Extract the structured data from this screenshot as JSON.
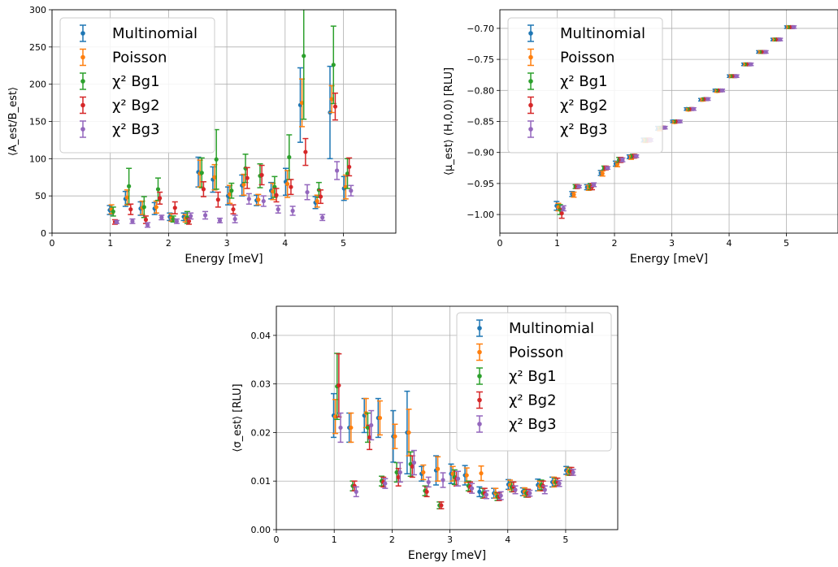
{
  "colors": {
    "Multinomial": "#1f77b4",
    "Poisson": "#ff7f0e",
    "Bg1": "#2ca02c",
    "Bg2": "#d62728",
    "Bg3": "#9467bd"
  },
  "chart_data": [
    {
      "type": "scatter",
      "subtype": "errorbar",
      "xlabel": "Energy [meV]",
      "ylabel": "⟨A_est/B_est⟩",
      "xlim": [
        0,
        5.9
      ],
      "ylim": [
        0,
        300
      ],
      "xticks": [
        0,
        1,
        2,
        3,
        4,
        5
      ],
      "yticks": [
        0,
        50,
        100,
        150,
        200,
        250,
        300
      ],
      "grid": true,
      "legend_position": "top-left",
      "x": [
        1.05,
        1.32,
        1.58,
        1.82,
        2.08,
        2.32,
        2.57,
        2.82,
        3.08,
        3.32,
        3.57,
        3.82,
        4.07,
        4.32,
        4.58,
        4.83,
        5.07
      ],
      "series": [
        {
          "name": "Multinomial",
          "values": [
            31,
            46,
            33,
            33,
            22,
            22,
            82,
            72,
            50,
            64,
            44,
            57,
            69,
            172,
            41,
            162,
            60
          ],
          "err": [
            6,
            10,
            9,
            8,
            5,
            5,
            20,
            17,
            12,
            14,
            7,
            11,
            18,
            50,
            8,
            62,
            16
          ]
        },
        {
          "name": "Poisson",
          "values": [
            32,
            48,
            34,
            35,
            21,
            20,
            80,
            75,
            52,
            65,
            45,
            56,
            66,
            175,
            43,
            180,
            62
          ],
          "err": [
            6,
            10,
            9,
            8,
            5,
            5,
            18,
            17,
            12,
            14,
            7,
            11,
            18,
            32,
            8,
            18,
            16
          ]
        },
        {
          "name": "χ² Bg1",
          "values": [
            29,
            63,
            35,
            59,
            19,
            21,
            81,
            99,
            57,
            87,
            77,
            62,
            102,
            238,
            58,
            226,
            80
          ],
          "err": [
            6,
            24,
            14,
            15,
            4,
            8,
            20,
            40,
            10,
            19,
            16,
            14,
            30,
            85,
            10,
            52,
            20
          ]
        },
        {
          "name": "χ² Bg2",
          "values": [
            15,
            32,
            18,
            47,
            34,
            16,
            59,
            45,
            32,
            74,
            78,
            51,
            62,
            109,
            49,
            170,
            89
          ],
          "err": [
            3,
            7,
            5,
            8,
            8,
            4,
            10,
            10,
            6,
            14,
            13,
            9,
            10,
            18,
            9,
            18,
            12
          ]
        },
        {
          "name": "χ² Bg3",
          "values": [
            15,
            16,
            11,
            21,
            16,
            23,
            24,
            17,
            19,
            46,
            43,
            32,
            30,
            55,
            21,
            84,
            57
          ],
          "err": [
            2,
            3,
            3,
            3,
            3,
            4,
            5,
            3,
            5,
            7,
            7,
            5,
            6,
            10,
            4,
            12,
            7
          ]
        }
      ]
    },
    {
      "type": "scatter",
      "subtype": "errorbar",
      "xlabel": "Energy [meV]",
      "ylabel": "⟨μ_est⟩ (H,0,0) [RLU]",
      "xlim": [
        0,
        5.9
      ],
      "ylim": [
        -1.03,
        -0.67
      ],
      "xticks": [
        0,
        1,
        2,
        3,
        4,
        5
      ],
      "yticks": [
        -1.0,
        -0.95,
        -0.9,
        -0.85,
        -0.8,
        -0.75,
        -0.7
      ],
      "grid": true,
      "legend_position": "top-left",
      "x": [
        1.05,
        1.32,
        1.58,
        1.82,
        2.08,
        2.32,
        2.57,
        2.82,
        3.08,
        3.32,
        3.57,
        3.82,
        4.07,
        4.32,
        4.58,
        4.83,
        5.07
      ],
      "series": [
        {
          "name": "Multinomial",
          "values": [
            -0.986,
            -0.967,
            -0.956,
            -0.933,
            -0.918,
            -0.907,
            -0.88,
            -0.861,
            -0.85,
            -0.83,
            -0.815,
            -0.8,
            -0.777,
            -0.758,
            -0.738,
            -0.718,
            -0.698
          ],
          "err": [
            0.007,
            0.004,
            0.004,
            0.004,
            0.004,
            0.003,
            0.003,
            0.003,
            0.002,
            0.002,
            0.002,
            0.002,
            0.002,
            0.002,
            0.002,
            0.002,
            0.002
          ]
        },
        {
          "name": "Poisson",
          "values": [
            -0.988,
            -0.968,
            -0.957,
            -0.934,
            -0.919,
            -0.908,
            -0.881,
            -0.862,
            -0.851,
            -0.831,
            -0.815,
            -0.801,
            -0.777,
            -0.758,
            -0.738,
            -0.718,
            -0.698
          ],
          "err": [
            0.006,
            0.004,
            0.004,
            0.004,
            0.004,
            0.003,
            0.003,
            0.003,
            0.002,
            0.002,
            0.002,
            0.002,
            0.002,
            0.002,
            0.002,
            0.002,
            0.002
          ]
        },
        {
          "name": "χ² Bg1",
          "values": [
            -0.992,
            -0.955,
            -0.955,
            -0.925,
            -0.912,
            -0.906,
            -0.88,
            -0.86,
            -0.85,
            -0.83,
            -0.814,
            -0.8,
            -0.777,
            -0.758,
            -0.738,
            -0.718,
            -0.698
          ],
          "err": [
            0.008,
            0.003,
            0.005,
            0.003,
            0.004,
            0.003,
            0.003,
            0.002,
            0.002,
            0.002,
            0.002,
            0.002,
            0.002,
            0.002,
            0.002,
            0.002,
            0.002
          ]
        },
        {
          "name": "χ² Bg2",
          "values": [
            -0.998,
            -0.955,
            -0.955,
            -0.925,
            -0.912,
            -0.906,
            -0.88,
            -0.86,
            -0.85,
            -0.83,
            -0.814,
            -0.8,
            -0.777,
            -0.758,
            -0.738,
            -0.718,
            -0.698
          ],
          "err": [
            0.008,
            0.003,
            0.005,
            0.003,
            0.004,
            0.003,
            0.003,
            0.002,
            0.002,
            0.002,
            0.002,
            0.002,
            0.002,
            0.002,
            0.002,
            0.002,
            0.002
          ]
        },
        {
          "name": "χ² Bg3",
          "values": [
            -0.99,
            -0.955,
            -0.952,
            -0.925,
            -0.912,
            -0.906,
            -0.88,
            -0.86,
            -0.85,
            -0.83,
            -0.814,
            -0.8,
            -0.777,
            -0.758,
            -0.738,
            -0.718,
            -0.698
          ],
          "err": [
            0.004,
            0.002,
            0.003,
            0.002,
            0.003,
            0.002,
            0.002,
            0.002,
            0.002,
            0.002,
            0.002,
            0.002,
            0.002,
            0.002,
            0.002,
            0.002,
            0.002
          ]
        }
      ]
    },
    {
      "type": "scatter",
      "subtype": "errorbar",
      "xlabel": "Energy [meV]",
      "ylabel": "⟨σ_est⟩ [RLU]",
      "xlim": [
        0,
        5.9
      ],
      "ylim": [
        0,
        0.046
      ],
      "xticks": [
        0,
        1,
        2,
        3,
        4,
        5
      ],
      "yticks": [
        0.0,
        0.01,
        0.02,
        0.03,
        0.04
      ],
      "grid": true,
      "legend_position": "top-right",
      "x": [
        1.05,
        1.32,
        1.58,
        1.82,
        2.08,
        2.32,
        2.57,
        2.82,
        3.08,
        3.32,
        3.57,
        3.82,
        4.07,
        4.32,
        4.58,
        4.83,
        5.07
      ],
      "series": [
        {
          "name": "Multinomial",
          "values": [
            0.0235,
            0.021,
            0.0235,
            0.023,
            0.0192,
            0.02,
            0.0115,
            0.0122,
            0.0115,
            0.0112,
            0.0078,
            0.0075,
            0.0093,
            0.0078,
            0.0092,
            0.0098,
            0.0122
          ],
          "err": [
            0.0045,
            0.003,
            0.0035,
            0.004,
            0.0053,
            0.0085,
            0.0015,
            0.003,
            0.002,
            0.002,
            0.001,
            0.001,
            0.001,
            0.0008,
            0.0012,
            0.001,
            0.0008
          ]
        },
        {
          "name": "Poisson",
          "values": [
            0.0233,
            0.021,
            0.024,
            0.023,
            0.0192,
            0.02,
            0.0118,
            0.0125,
            0.0115,
            0.0112,
            0.0116,
            0.0075,
            0.0092,
            0.0078,
            0.009,
            0.0098,
            0.012
          ],
          "err": [
            0.0035,
            0.003,
            0.003,
            0.0035,
            0.0025,
            0.0048,
            0.0015,
            0.0025,
            0.0015,
            0.0015,
            0.0015,
            0.001,
            0.001,
            0.0008,
            0.001,
            0.001,
            0.0008
          ]
        },
        {
          "name": "χ² Bg1",
          "values": [
            0.0295,
            0.009,
            0.021,
            0.01,
            0.0118,
            0.0135,
            0.008,
            0.005,
            0.0108,
            0.009,
            0.0075,
            0.0068,
            0.0088,
            0.0075,
            0.0092,
            0.0098,
            0.012
          ],
          "err": [
            0.0068,
            0.001,
            0.003,
            0.001,
            0.002,
            0.0025,
            0.001,
            0.0007,
            0.0015,
            0.001,
            0.001,
            0.0008,
            0.001,
            0.0008,
            0.001,
            0.0008,
            0.0008
          ]
        },
        {
          "name": "χ² Bg2",
          "values": [
            0.0297,
            0.009,
            0.019,
            0.0098,
            0.0108,
            0.013,
            0.0078,
            0.005,
            0.0105,
            0.0088,
            0.0075,
            0.0068,
            0.0088,
            0.0075,
            0.009,
            0.0098,
            0.012
          ],
          "err": [
            0.0065,
            0.001,
            0.0025,
            0.001,
            0.0018,
            0.0022,
            0.001,
            0.0007,
            0.0015,
            0.001,
            0.001,
            0.0008,
            0.001,
            0.0008,
            0.001,
            0.0008,
            0.0008
          ]
        },
        {
          "name": "χ² Bg3",
          "values": [
            0.021,
            0.0078,
            0.0215,
            0.0095,
            0.0118,
            0.0138,
            0.0098,
            0.0102,
            0.0105,
            0.0085,
            0.0072,
            0.007,
            0.0082,
            0.0075,
            0.0082,
            0.0095,
            0.0118
          ],
          "err": [
            0.003,
            0.001,
            0.003,
            0.001,
            0.002,
            0.0025,
            0.001,
            0.0015,
            0.0015,
            0.001,
            0.0008,
            0.0008,
            0.0008,
            0.0006,
            0.0008,
            0.0006,
            0.0006
          ]
        }
      ]
    }
  ]
}
